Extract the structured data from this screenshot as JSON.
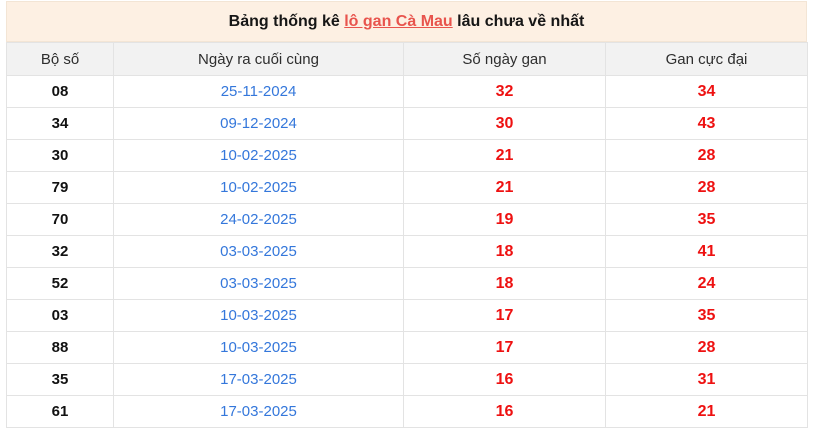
{
  "title": {
    "prefix": "Bảng thống kê ",
    "link": "lô gan Cà Mau",
    "suffix": " lâu chưa về nhất"
  },
  "table": {
    "headers": [
      "Bộ số",
      "Ngày ra cuối cùng",
      "Số ngày gan",
      "Gan cực đại"
    ],
    "rows": [
      {
        "bo_so": "08",
        "ngay_ra": "25-11-2024",
        "so_ngay_gan": "32",
        "gan_cuc_dai": "34"
      },
      {
        "bo_so": "34",
        "ngay_ra": "09-12-2024",
        "so_ngay_gan": "30",
        "gan_cuc_dai": "43"
      },
      {
        "bo_so": "30",
        "ngay_ra": "10-02-2025",
        "so_ngay_gan": "21",
        "gan_cuc_dai": "28"
      },
      {
        "bo_so": "79",
        "ngay_ra": "10-02-2025",
        "so_ngay_gan": "21",
        "gan_cuc_dai": "28"
      },
      {
        "bo_so": "70",
        "ngay_ra": "24-02-2025",
        "so_ngay_gan": "19",
        "gan_cuc_dai": "35"
      },
      {
        "bo_so": "32",
        "ngay_ra": "03-03-2025",
        "so_ngay_gan": "18",
        "gan_cuc_dai": "41"
      },
      {
        "bo_so": "52",
        "ngay_ra": "03-03-2025",
        "so_ngay_gan": "18",
        "gan_cuc_dai": "24"
      },
      {
        "bo_so": "03",
        "ngay_ra": "10-03-2025",
        "so_ngay_gan": "17",
        "gan_cuc_dai": "35"
      },
      {
        "bo_so": "88",
        "ngay_ra": "10-03-2025",
        "so_ngay_gan": "17",
        "gan_cuc_dai": "28"
      },
      {
        "bo_so": "35",
        "ngay_ra": "17-03-2025",
        "so_ngay_gan": "16",
        "gan_cuc_dai": "31"
      },
      {
        "bo_so": "61",
        "ngay_ra": "17-03-2025",
        "so_ngay_gan": "16",
        "gan_cuc_dai": "21"
      }
    ]
  },
  "colors": {
    "title_bar_bg": "#fdf0e3",
    "title_link_red": "#e8544d",
    "date_blue": "#3477db",
    "value_red": "#ee1111",
    "header_row_bg": "#f2f2f2",
    "border": "#e3e3e3"
  }
}
